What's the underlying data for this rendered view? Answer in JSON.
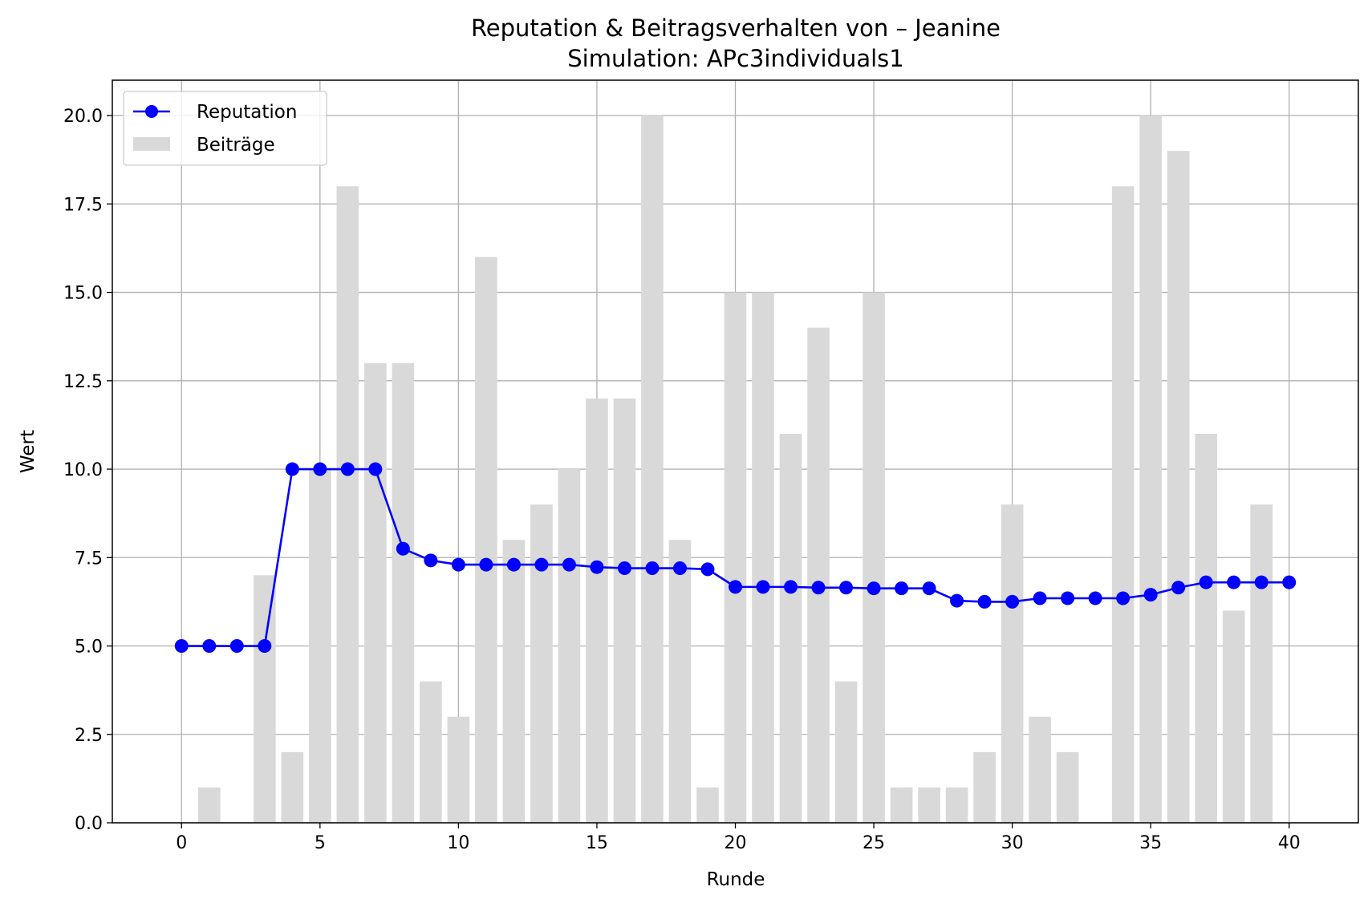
{
  "chart_data": {
    "type": "bar+line",
    "title": "Reputation & Beitragsverhalten von – Jeanine",
    "subtitle": "Simulation: APc3individuals1",
    "xlabel": "Runde",
    "ylabel": "Wert",
    "xlim": [
      -2.5,
      42.5
    ],
    "ylim": [
      0,
      21
    ],
    "xticks": [
      "0",
      "5",
      "10",
      "15",
      "20",
      "25",
      "30",
      "35",
      "40"
    ],
    "yticks": [
      "0.0",
      "2.5",
      "5.0",
      "7.5",
      "10.0",
      "12.5",
      "15.0",
      "17.5",
      "20.0"
    ],
    "grid": true,
    "legend_position": "top-left",
    "series": [
      {
        "name": "Reputation",
        "kind": "line",
        "marker": "circle",
        "color": "#0000ff",
        "x": [
          0,
          1,
          2,
          3,
          4,
          5,
          6,
          7,
          8,
          9,
          10,
          11,
          12,
          13,
          14,
          15,
          16,
          17,
          18,
          19,
          20,
          21,
          22,
          23,
          24,
          25,
          26,
          27,
          28,
          29,
          30,
          31,
          32,
          33,
          34,
          35,
          36,
          37,
          38,
          39,
          40
        ],
        "values": [
          5.0,
          5.0,
          5.0,
          5.0,
          10.0,
          10.0,
          10.0,
          10.0,
          7.75,
          7.42,
          7.3,
          7.3,
          7.3,
          7.3,
          7.3,
          7.23,
          7.2,
          7.2,
          7.2,
          7.17,
          6.67,
          6.67,
          6.67,
          6.65,
          6.65,
          6.63,
          6.63,
          6.63,
          6.28,
          6.25,
          6.25,
          6.35,
          6.35,
          6.35,
          6.35,
          6.45,
          6.65,
          6.8,
          6.8,
          6.8,
          6.8
        ]
      },
      {
        "name": "Beiträge",
        "kind": "bar",
        "color": "#d9d9d9",
        "x": [
          1,
          2,
          3,
          4,
          5,
          6,
          7,
          8,
          9,
          10,
          11,
          12,
          13,
          14,
          15,
          16,
          17,
          18,
          19,
          20,
          21,
          22,
          23,
          24,
          25,
          26,
          27,
          28,
          29,
          30,
          31,
          32,
          33,
          34,
          35,
          36,
          37,
          38,
          39
        ],
        "values": [
          1,
          0,
          7,
          2,
          10,
          18,
          13,
          13,
          4,
          3,
          16,
          8,
          9,
          10,
          12,
          12,
          20,
          8,
          1,
          15,
          15,
          11,
          14,
          4,
          15,
          1,
          1,
          1,
          2,
          9,
          3,
          2,
          0,
          18,
          20,
          19,
          11,
          6,
          9
        ]
      }
    ]
  }
}
